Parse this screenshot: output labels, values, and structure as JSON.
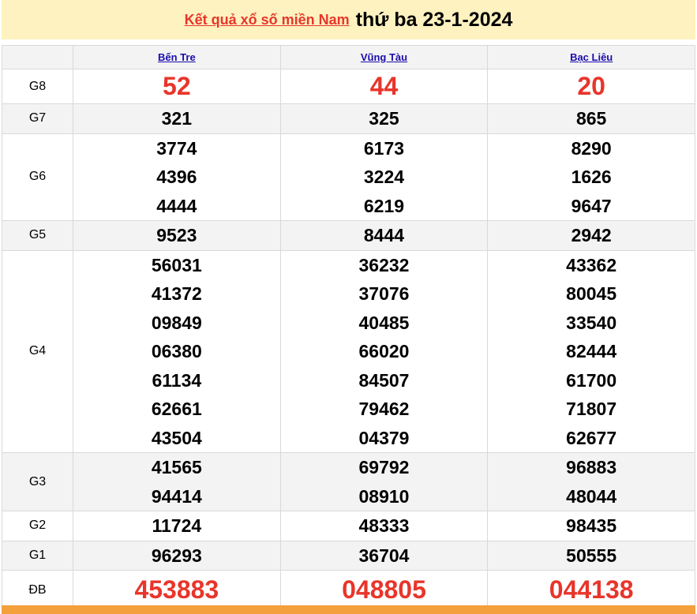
{
  "header": {
    "link_text": "Kết quả xổ số miền Nam",
    "date_text": "thứ ba 23-1-2024"
  },
  "colors": {
    "accent_red": "#e8352b",
    "header_bg": "#fdf2c0",
    "footer_bg": "#f4a03c"
  },
  "provinces": [
    "Bến Tre",
    "Vũng Tàu",
    "Bạc Liêu"
  ],
  "prizes": [
    {
      "label": "G8",
      "values": [
        [
          "52"
        ],
        [
          "44"
        ],
        [
          "20"
        ]
      ]
    },
    {
      "label": "G7",
      "values": [
        [
          "321"
        ],
        [
          "325"
        ],
        [
          "865"
        ]
      ]
    },
    {
      "label": "G6",
      "values": [
        [
          "3774",
          "4396",
          "4444"
        ],
        [
          "6173",
          "3224",
          "6219"
        ],
        [
          "8290",
          "1626",
          "9647"
        ]
      ]
    },
    {
      "label": "G5",
      "values": [
        [
          "9523"
        ],
        [
          "8444"
        ],
        [
          "2942"
        ]
      ]
    },
    {
      "label": "G4",
      "values": [
        [
          "56031",
          "41372",
          "09849",
          "06380",
          "61134",
          "62661",
          "43504"
        ],
        [
          "36232",
          "37076",
          "40485",
          "66020",
          "84507",
          "79462",
          "04379"
        ],
        [
          "43362",
          "80045",
          "33540",
          "82444",
          "61700",
          "71807",
          "62677"
        ]
      ]
    },
    {
      "label": "G3",
      "values": [
        [
          "41565",
          "94414"
        ],
        [
          "69792",
          "08910"
        ],
        [
          "96883",
          "48044"
        ]
      ]
    },
    {
      "label": "G2",
      "values": [
        [
          "11724"
        ],
        [
          "48333"
        ],
        [
          "98435"
        ]
      ]
    },
    {
      "label": "G1",
      "values": [
        [
          "96293"
        ],
        [
          "36704"
        ],
        [
          "50555"
        ]
      ]
    },
    {
      "label": "ĐB",
      "values": [
        [
          "453883"
        ],
        [
          "048805"
        ],
        [
          "044138"
        ]
      ]
    }
  ]
}
